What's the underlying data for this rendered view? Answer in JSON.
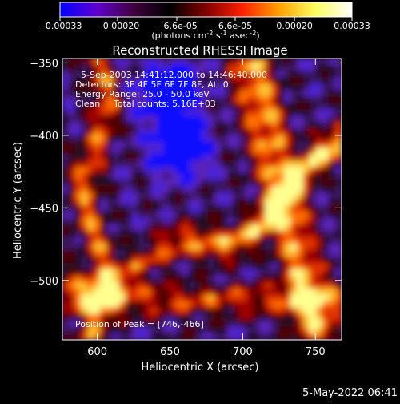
{
  "colorbar": {
    "tick_labels": [
      "-0.00033",
      "-0.00020",
      "-6.6e-05",
      "6.6e-05",
      "0.00020",
      "0.00033"
    ],
    "range": [
      -0.00033,
      0.00033
    ],
    "unit_label": "(photons cm",
    "unit_sup1": "-2",
    "unit_mid": " s",
    "unit_sup2": "-1",
    "unit_mid2": " asec",
    "unit_sup3": "-2",
    "unit_end": ")",
    "colors": [
      "#0000ff",
      "#6000d0",
      "#400040",
      "#000000",
      "#800000",
      "#ff2000",
      "#ffa000",
      "#ffff60",
      "#ffffff"
    ]
  },
  "chart_data": {
    "type": "heatmap",
    "title": "Reconstructed RHESSI Image",
    "xlabel": "Heliocentric X (arcsec)",
    "ylabel": "Heliocentric Y (arcsec)",
    "xlim": [
      576,
      768
    ],
    "ylim": [
      -541,
      -347
    ],
    "x_ticks": [
      600,
      650,
      700,
      750
    ],
    "x_tick_labels": [
      "600",
      "650",
      "700",
      "750"
    ],
    "y_ticks": [
      -350,
      -400,
      -450,
      -500
    ],
    "y_tick_labels": [
      "-350",
      "-400",
      "-450",
      "-500"
    ],
    "peak": [
      746,
      -466
    ],
    "annotations": {
      "time": "5-Sep-2003 14:41:12.000 to 14:46:40.000",
      "detectors": "Detectors: 3F 4F 5F 6F 7F 8F, Att 0",
      "energy": "Energy Range: 25.0 - 50.0 keV",
      "clean_label": "Clean",
      "counts": "Total counts: 5.16E+03",
      "peak_text": "Position of Peak = [746,-466]"
    }
  },
  "footer": {
    "date": "5-May-2022 06:41"
  }
}
